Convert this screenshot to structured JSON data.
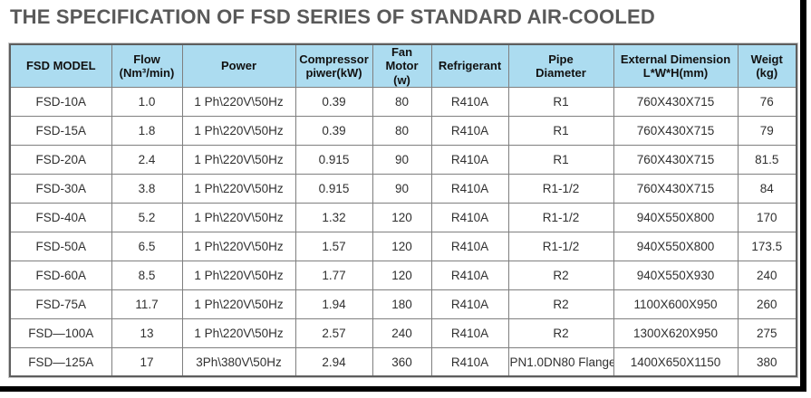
{
  "title": "THE SPECIFICATION OF FSD SERIES OF STANDARD AIR-COOLED",
  "colors": {
    "title_text": "#595959",
    "header_bg": "#acdcf0",
    "cell_text": "#303030",
    "grid_border": "#7f7f7f",
    "frame_bars": "#000000"
  },
  "table": {
    "columns": [
      "FSD MODEL",
      "Flow\n(Nm³/min)",
      "Power",
      "Compressor\npiwer(kW)",
      "Fan Motor\n(w)",
      "Refrigerant",
      "Pipe\nDiameter",
      "External Dimension\nL*W*H(mm)",
      "Weigt\n(kg)"
    ],
    "rows": [
      [
        "FSD-10A",
        "1.0",
        "1 Ph\\220V\\50Hz",
        "0.39",
        "80",
        "R410A",
        "R1",
        "760X430X715",
        "76"
      ],
      [
        "FSD-15A",
        "1.8",
        "1 Ph\\220V\\50Hz",
        "0.39",
        "80",
        "R410A",
        "R1",
        "760X430X715",
        "79"
      ],
      [
        "FSD-20A",
        "2.4",
        "1 Ph\\220V\\50Hz",
        "0.915",
        "90",
        "R410A",
        "R1",
        "760X430X715",
        "81.5"
      ],
      [
        "FSD-30A",
        "3.8",
        "1 Ph\\220V\\50Hz",
        "0.915",
        "90",
        "R410A",
        "R1-1/2",
        "760X430X715",
        "84"
      ],
      [
        "FSD-40A",
        "5.2",
        "1 Ph\\220V\\50Hz",
        "1.32",
        "120",
        "R410A",
        "R1-1/2",
        "940X550X800",
        "170"
      ],
      [
        "FSD-50A",
        "6.5",
        "1 Ph\\220V\\50Hz",
        "1.57",
        "120",
        "R410A",
        "R1-1/2",
        "940X550X800",
        "173.5"
      ],
      [
        "FSD-60A",
        "8.5",
        "1 Ph\\220V\\50Hz",
        "1.77",
        "120",
        "R410A",
        "R2",
        "940X550X930",
        "240"
      ],
      [
        "FSD-75A",
        "11.7",
        "1 Ph\\220V\\50Hz",
        "1.94",
        "180",
        "R410A",
        "R2",
        "1100X600X950",
        "260"
      ],
      [
        "FSD—100A",
        "13",
        "1 Ph\\220V\\50Hz",
        "2.57",
        "240",
        "R410A",
        "R2",
        "1300X620X950",
        "275"
      ],
      [
        "FSD—125A",
        "17",
        "3Ph\\380V\\50Hz",
        "2.94",
        "360",
        "R410A",
        "PN1.0DN80 Flange",
        "1400X650X1150",
        "380"
      ]
    ]
  }
}
